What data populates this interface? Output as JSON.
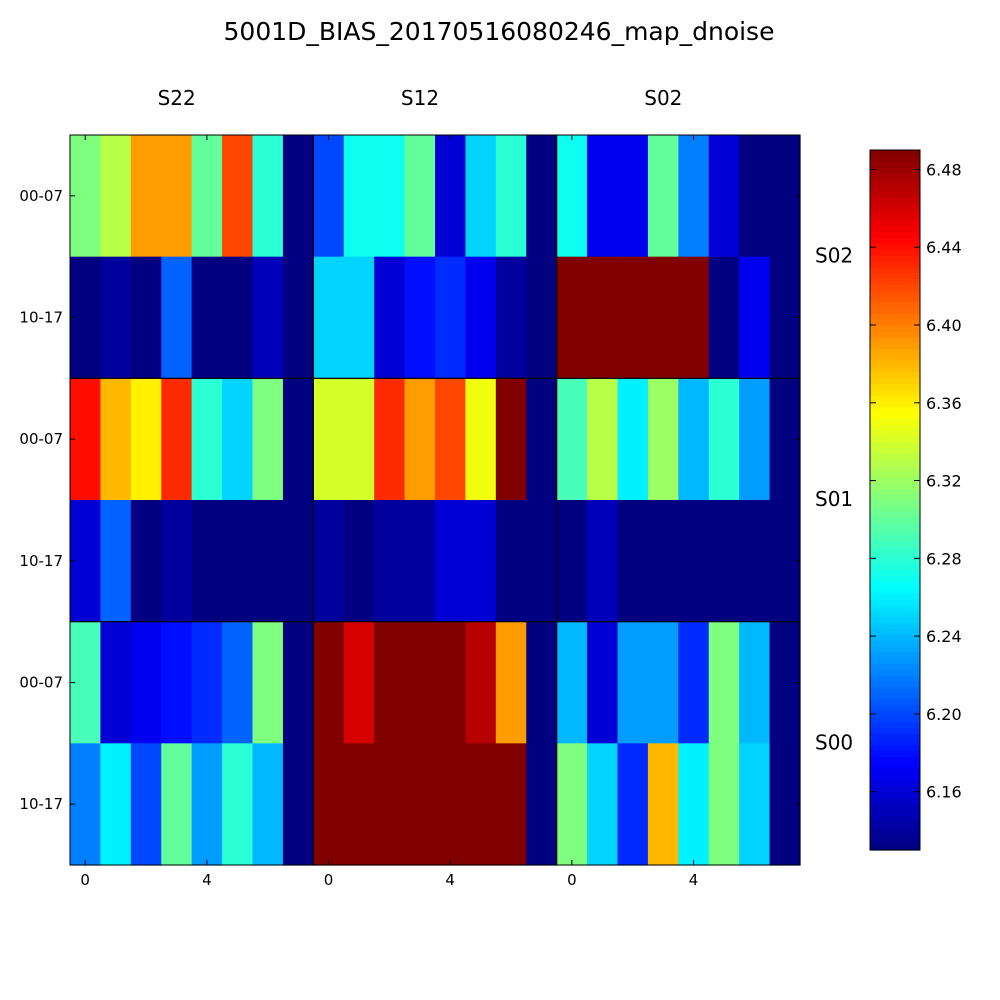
{
  "chart_data": {
    "type": "heatmap",
    "title": "5001D_BIAS_20170516080246_map_dnoise",
    "column_panels": [
      "S22",
      "S12",
      "S02"
    ],
    "row_panels": [
      "S02",
      "S01",
      "S00"
    ],
    "row_tick_labels": [
      "00-07",
      "10-17"
    ],
    "x_tick_labels": [
      "0",
      "4"
    ],
    "x_tick_values": [
      0,
      4
    ],
    "columns_per_panel": 8,
    "colormap": "jet",
    "colorbar": {
      "vmin": 6.13,
      "vmax": 6.49,
      "ticks": [
        6.16,
        6.2,
        6.24,
        6.28,
        6.32,
        6.36,
        6.4,
        6.44,
        6.48
      ],
      "tick_labels": [
        "6.16",
        "6.20",
        "6.24",
        "6.28",
        "6.32",
        "6.36",
        "6.40",
        "6.44",
        "6.48"
      ]
    },
    "panels": [
      {
        "row": "S02",
        "col": "S22",
        "values": [
          [
            6.31,
            6.33,
            6.39,
            6.39,
            6.3,
            6.42,
            6.28,
            6.13
          ],
          [
            6.13,
            6.14,
            6.13,
            6.21,
            6.13,
            6.13,
            6.15,
            6.13
          ]
        ]
      },
      {
        "row": "S02",
        "col": "S12",
        "values": [
          [
            6.2,
            6.27,
            6.27,
            6.3,
            6.16,
            6.25,
            6.28,
            6.13
          ],
          [
            6.25,
            6.25,
            6.16,
            6.18,
            6.19,
            6.17,
            6.14,
            6.13
          ]
        ]
      },
      {
        "row": "S02",
        "col": "S02",
        "values": [
          [
            6.27,
            6.17,
            6.17,
            6.3,
            6.22,
            6.16,
            6.13,
            6.13
          ],
          [
            6.49,
            6.49,
            6.49,
            6.49,
            6.49,
            6.13,
            6.17,
            6.13
          ]
        ]
      },
      {
        "row": "S01",
        "col": "S22",
        "values": [
          [
            6.44,
            6.38,
            6.36,
            6.43,
            6.28,
            6.25,
            6.31,
            6.13
          ],
          [
            6.16,
            6.21,
            6.13,
            6.14,
            6.13,
            6.13,
            6.13,
            6.13
          ]
        ]
      },
      {
        "row": "S01",
        "col": "S12",
        "values": [
          [
            6.34,
            6.34,
            6.43,
            6.39,
            6.42,
            6.35,
            6.49,
            6.13
          ],
          [
            6.14,
            6.13,
            6.14,
            6.14,
            6.16,
            6.16,
            6.13,
            6.13
          ]
        ]
      },
      {
        "row": "S01",
        "col": "S02",
        "values": [
          [
            6.29,
            6.33,
            6.26,
            6.32,
            6.24,
            6.28,
            6.23,
            6.13
          ],
          [
            6.13,
            6.15,
            6.13,
            6.13,
            6.13,
            6.13,
            6.13,
            6.13
          ]
        ]
      },
      {
        "row": "S00",
        "col": "S22",
        "values": [
          [
            6.29,
            6.16,
            6.17,
            6.18,
            6.19,
            6.21,
            6.31,
            6.13
          ],
          [
            6.22,
            6.26,
            6.2,
            6.3,
            6.23,
            6.28,
            6.24,
            6.13
          ]
        ]
      },
      {
        "row": "S00",
        "col": "S12",
        "values": [
          [
            6.49,
            6.46,
            6.49,
            6.49,
            6.49,
            6.47,
            6.39,
            6.13
          ],
          [
            6.49,
            6.49,
            6.49,
            6.49,
            6.49,
            6.49,
            6.49,
            6.13
          ]
        ]
      },
      {
        "row": "S00",
        "col": "S02",
        "values": [
          [
            6.24,
            6.16,
            6.23,
            6.23,
            6.19,
            6.31,
            6.24,
            6.13
          ],
          [
            6.31,
            6.25,
            6.19,
            6.38,
            6.26,
            6.31,
            6.25,
            6.13
          ]
        ]
      }
    ]
  }
}
